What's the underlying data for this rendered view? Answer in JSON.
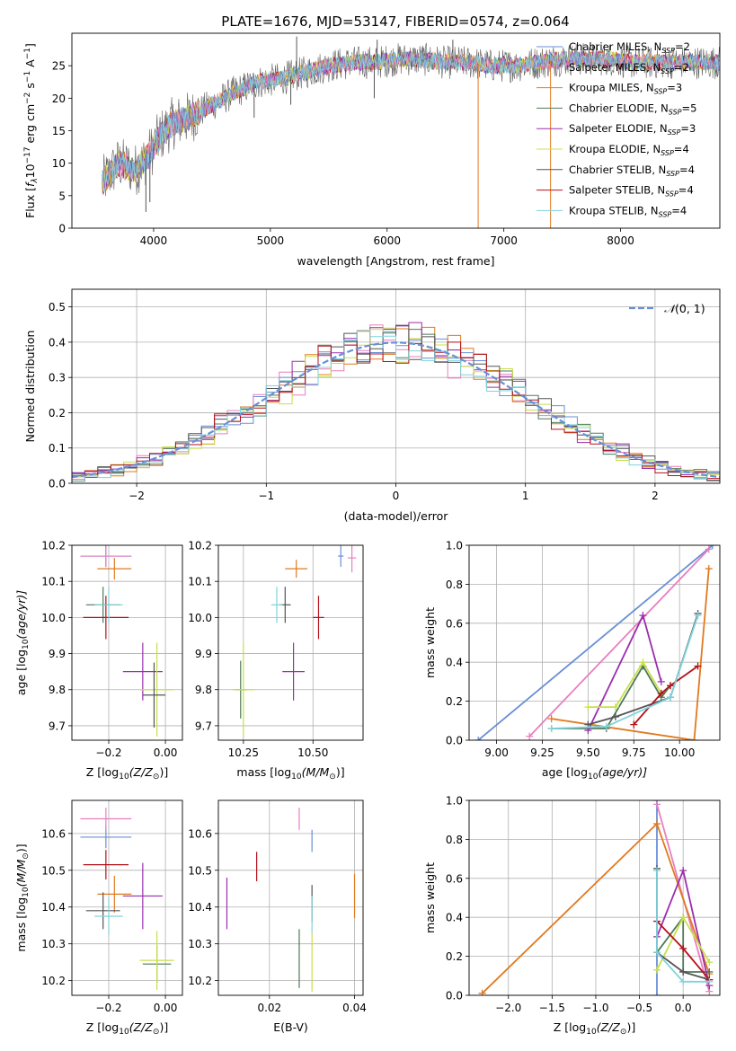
{
  "title": "PLATE=1676, MJD=53147, FIBERID=0574, z=0.064",
  "colors": {
    "Chabrier MILES": "#6a8fd6",
    "Salpeter MILES": "#e87fbf",
    "Kroupa MILES": "#e07a1f",
    "Chabrier ELODIE": "#4f7a5a",
    "Salpeter ELODIE": "#9a2fae",
    "Kroupa ELODIE": "#c8e04a",
    "Chabrier STELIB": "#555555",
    "Salpeter STELIB": "#b3121b",
    "Kroupa STELIB": "#7fd3dd"
  },
  "legend_models": [
    {
      "name": "Chabrier MILES",
      "n": "2"
    },
    {
      "name": "Salpeter MILES",
      "n": "2"
    },
    {
      "name": "Kroupa MILES",
      "n": "3"
    },
    {
      "name": "Chabrier ELODIE",
      "n": "5"
    },
    {
      "name": "Salpeter ELODIE",
      "n": "3"
    },
    {
      "name": "Kroupa ELODIE",
      "n": "4"
    },
    {
      "name": "Chabrier STELIB",
      "n": "4"
    },
    {
      "name": "Salpeter STELIB",
      "n": "4"
    },
    {
      "name": "Kroupa STELIB",
      "n": "4"
    }
  ],
  "chart_data": [
    {
      "type": "line",
      "id": "spectrum",
      "xlabel": "wavelength [Angstrom, rest frame]",
      "ylabel_parts": {
        "prefix": "Flux [",
        "f": "f",
        "lambda": "λ",
        "ten": "10",
        "exp": "−17",
        "units": " erg cm",
        "cm_exp": "−2",
        "s": " s",
        "s_exp": "−1",
        "A": " A",
        "A_exp": "−1",
        "close": "]"
      },
      "xlim": [
        3300,
        8850
      ],
      "ylim": [
        0,
        30
      ],
      "xticks": [
        4000,
        5000,
        6000,
        7000,
        8000
      ],
      "yticks": [
        0,
        5,
        10,
        15,
        20,
        25
      ],
      "legend_position": "right",
      "continuum": [
        [
          3560,
          7
        ],
        [
          3700,
          10
        ],
        [
          3850,
          9
        ],
        [
          3950,
          11
        ],
        [
          4050,
          14
        ],
        [
          4150,
          16
        ],
        [
          4300,
          17
        ],
        [
          4500,
          19
        ],
        [
          4700,
          21
        ],
        [
          4900,
          22.5
        ],
        [
          5100,
          23
        ],
        [
          5300,
          24
        ],
        [
          5500,
          25
        ],
        [
          5700,
          25.5
        ],
        [
          5900,
          25.5
        ],
        [
          6100,
          26
        ],
        [
          6300,
          26
        ],
        [
          6500,
          25.5
        ],
        [
          6700,
          25.5
        ],
        [
          6900,
          25
        ],
        [
          7100,
          25
        ],
        [
          7300,
          25.5
        ],
        [
          7500,
          26
        ],
        [
          7700,
          26
        ],
        [
          7900,
          26
        ],
        [
          8100,
          25.5
        ],
        [
          8300,
          25.5
        ],
        [
          8500,
          25.5
        ],
        [
          8800,
          25.5
        ]
      ],
      "features": [
        {
          "x": 3934,
          "y": 2.5
        },
        {
          "x": 3968,
          "y": 4
        },
        {
          "x": 4861,
          "y": 17
        },
        {
          "x": 5175,
          "y": 19
        },
        {
          "x": 5225,
          "y": 29.5
        },
        {
          "x": 5890,
          "y": 20
        },
        {
          "x": 5915,
          "y": 29
        },
        {
          "x": 6300,
          "y": 25.5
        },
        {
          "x": 6563,
          "y": 29
        },
        {
          "x": 6780,
          "y": 0
        },
        {
          "x": 7400,
          "y": 0
        }
      ]
    },
    {
      "type": "bar",
      "id": "residuals",
      "xlabel": "(data-model)/error",
      "ylabel": "Normed distribution",
      "xlim": [
        -2.5,
        2.5
      ],
      "ylim": [
        0,
        0.55
      ],
      "xticks": [
        -2,
        -1,
        0,
        1,
        2
      ],
      "xtick_labels": [
        "−2",
        "−1",
        "0",
        "1",
        "2"
      ],
      "yticks": [
        0,
        0.1,
        0.2,
        0.3,
        0.4,
        0.5
      ],
      "ytick_labels": [
        "0.0",
        "0.1",
        "0.2",
        "0.3",
        "0.4",
        "0.5"
      ],
      "bin_width": 0.1,
      "reference_curve": {
        "name_script": "𝒩",
        "name_rest": "(0, 1)",
        "mean": 0,
        "sigma": 1,
        "color": "#6a8fd6"
      },
      "legend_position": "top-right"
    },
    {
      "type": "scatter",
      "id": "age-vs-Z",
      "xlabel_parts": {
        "a": "Z [log",
        "sub": "10",
        "b": "(Z/Z",
        "sun": "⊙",
        "c": ")]"
      },
      "ylabel_parts": {
        "a": "age  [log",
        "sub": "10",
        "b": "(age/yr)]"
      },
      "xlim": [
        -0.33,
        0.06
      ],
      "ylim": [
        9.66,
        10.2
      ],
      "xticks": [
        -0.2,
        0.0
      ],
      "xtick_labels": [
        "−0.2",
        "0.00"
      ],
      "yticks": [
        9.7,
        9.8,
        9.9,
        10.0,
        10.1,
        10.2
      ],
      "ytick_labels": [
        "9.7",
        "9.8",
        "9.9",
        "10.0",
        "10.1",
        "10.2"
      ],
      "points": [
        {
          "m": "Chabrier MILES",
          "x": -0.21,
          "xerr": 0.09,
          "y": 10.17,
          "yerr": 0.03
        },
        {
          "m": "Salpeter MILES",
          "x": -0.21,
          "xerr": 0.09,
          "y": 10.17,
          "yerr": 0.03
        },
        {
          "m": "Kroupa MILES",
          "x": -0.18,
          "xerr": 0.06,
          "y": 10.135,
          "yerr": 0.03
        },
        {
          "m": "Chabrier ELODIE",
          "x": -0.22,
          "xerr": 0.06,
          "y": 10.035,
          "yerr": 0.05
        },
        {
          "m": "Salpeter ELODIE",
          "x": -0.08,
          "xerr": 0.07,
          "y": 9.85,
          "yerr": 0.08
        },
        {
          "m": "Kroupa ELODIE",
          "x": -0.03,
          "xerr": 0.06,
          "y": 9.8,
          "yerr": 0.13
        },
        {
          "m": "Chabrier STELIB",
          "x": -0.04,
          "xerr": 0.04,
          "y": 9.785,
          "yerr": 0.09
        },
        {
          "m": "Salpeter STELIB",
          "x": -0.21,
          "xerr": 0.08,
          "y": 10.0,
          "yerr": 0.06
        },
        {
          "m": "Kroupa STELIB",
          "x": -0.2,
          "xerr": 0.05,
          "y": 10.035,
          "yerr": 0.05
        }
      ]
    },
    {
      "type": "scatter",
      "id": "age-vs-mass",
      "xlabel_parts": {
        "a": "mass [log",
        "sub": "10",
        "b": "(M/M",
        "sun": "⊙",
        "c": ")]"
      },
      "xlim": [
        10.16,
        10.68
      ],
      "ylim": [
        9.66,
        10.2
      ],
      "xticks": [
        10.25,
        10.5
      ],
      "xtick_labels": [
        "10.25",
        "10.50"
      ],
      "yticks": [
        9.7,
        9.8,
        9.9,
        10.0,
        10.1,
        10.2
      ],
      "ytick_labels": [
        "9.7",
        "9.8",
        "9.9",
        "10.0",
        "10.1",
        "10.2"
      ],
      "points": [
        {
          "m": "Chabrier MILES",
          "x": 10.6,
          "xerr": 0.01,
          "y": 10.17,
          "yerr": 0.03
        },
        {
          "m": "Salpeter MILES",
          "x": 10.64,
          "xerr": 0.015,
          "y": 10.165,
          "yerr": 0.04
        },
        {
          "m": "Kroupa MILES",
          "x": 10.44,
          "xerr": 0.04,
          "y": 10.135,
          "yerr": 0.025
        },
        {
          "m": "Chabrier ELODIE",
          "x": 10.24,
          "xerr": 0.02,
          "y": 9.8,
          "yerr": 0.08
        },
        {
          "m": "Salpeter ELODIE",
          "x": 10.43,
          "xerr": 0.04,
          "y": 9.85,
          "yerr": 0.08
        },
        {
          "m": "Kroupa ELODIE",
          "x": 10.25,
          "xerr": 0.04,
          "y": 9.8,
          "yerr": 0.13
        },
        {
          "m": "Chabrier STELIB",
          "x": 10.4,
          "xerr": 0.02,
          "y": 10.035,
          "yerr": 0.05
        },
        {
          "m": "Salpeter STELIB",
          "x": 10.52,
          "xerr": 0.02,
          "y": 10.0,
          "yerr": 0.06
        },
        {
          "m": "Kroupa STELIB",
          "x": 10.37,
          "xerr": 0.02,
          "y": 10.035,
          "yerr": 0.05
        }
      ]
    },
    {
      "type": "line",
      "id": "mass-weight-vs-age",
      "xlabel_parts": {
        "a": "age  [log",
        "sub": "10",
        "b": "(age/yr)]"
      },
      "ylabel": "mass weight",
      "xlim": [
        8.85,
        10.22
      ],
      "ylim": [
        0,
        1
      ],
      "xticks": [
        9.0,
        9.25,
        9.5,
        9.75,
        10.0
      ],
      "xtick_labels": [
        "9.00",
        "9.25",
        "9.50",
        "9.75",
        "10.00"
      ],
      "yticks": [
        0,
        0.2,
        0.4,
        0.6,
        0.8,
        1.0
      ],
      "ytick_labels": [
        "0.0",
        "0.2",
        "0.4",
        "0.6",
        "0.8",
        "1.0"
      ],
      "series": [
        {
          "m": "Chabrier MILES",
          "x": [
            8.9,
            10.18
          ],
          "y": [
            0.0,
            1.0
          ]
        },
        {
          "m": "Salpeter MILES",
          "x": [
            9.18,
            10.16
          ],
          "y": [
            0.02,
            0.98
          ]
        },
        {
          "m": "Kroupa MILES",
          "x": [
            9.3,
            10.08,
            10.16
          ],
          "y": [
            0.11,
            0.0,
            0.88
          ]
        },
        {
          "m": "Chabrier ELODIE",
          "x": [
            9.3,
            9.6,
            9.8,
            9.9,
            9.95
          ],
          "y": [
            0.06,
            0.06,
            0.38,
            0.22,
            0.28
          ]
        },
        {
          "m": "Salpeter ELODIE",
          "x": [
            9.5,
            9.8,
            9.9
          ],
          "y": [
            0.05,
            0.64,
            0.3
          ]
        },
        {
          "m": "Kroupa ELODIE",
          "x": [
            9.5,
            9.65,
            9.8,
            9.9
          ],
          "y": [
            0.17,
            0.17,
            0.4,
            0.24
          ]
        },
        {
          "m": "Chabrier STELIB",
          "x": [
            9.5,
            9.65,
            9.95,
            10.1
          ],
          "y": [
            0.08,
            0.12,
            0.22,
            0.65
          ]
        },
        {
          "m": "Salpeter STELIB",
          "x": [
            9.75,
            9.9,
            9.95,
            10.1
          ],
          "y": [
            0.08,
            0.24,
            0.28,
            0.38
          ]
        },
        {
          "m": "Kroupa STELIB",
          "x": [
            9.3,
            9.6,
            9.95,
            10.1
          ],
          "y": [
            0.06,
            0.07,
            0.22,
            0.64
          ]
        }
      ]
    },
    {
      "type": "scatter",
      "id": "mass-vs-Z",
      "xlabel_parts": {
        "a": "Z [log",
        "sub": "10",
        "b": "(Z/Z",
        "sun": "⊙",
        "c": ")]"
      },
      "ylabel_parts": {
        "a": "mass [log",
        "sub": "10",
        "b": "(M/M",
        "sun": "⊙",
        "c": ")]"
      },
      "xlim": [
        -0.33,
        0.06
      ],
      "ylim": [
        10.16,
        10.69
      ],
      "xticks": [
        -0.2,
        0.0
      ],
      "xtick_labels": [
        "−0.2",
        "0.00"
      ],
      "yticks": [
        10.2,
        10.3,
        10.4,
        10.5,
        10.6
      ],
      "ytick_labels": [
        "10.2",
        "10.3",
        "10.4",
        "10.5",
        "10.6"
      ],
      "points": [
        {
          "m": "Chabrier MILES",
          "x": -0.21,
          "xerr": 0.09,
          "y": 10.59,
          "yerr": 0.03
        },
        {
          "m": "Salpeter MILES",
          "x": -0.21,
          "xerr": 0.09,
          "y": 10.64,
          "yerr": 0.03
        },
        {
          "m": "Kroupa MILES",
          "x": -0.18,
          "xerr": 0.06,
          "y": 10.435,
          "yerr": 0.05
        },
        {
          "m": "Chabrier ELODIE",
          "x": -0.03,
          "xerr": 0.05,
          "y": 10.245,
          "yerr": 0.05
        },
        {
          "m": "Salpeter ELODIE",
          "x": -0.08,
          "xerr": 0.07,
          "y": 10.43,
          "yerr": 0.09
        },
        {
          "m": "Kroupa ELODIE",
          "x": -0.03,
          "xerr": 0.06,
          "y": 10.255,
          "yerr": 0.08
        },
        {
          "m": "Chabrier STELIB",
          "x": -0.22,
          "xerr": 0.06,
          "y": 10.39,
          "yerr": 0.05
        },
        {
          "m": "Salpeter STELIB",
          "x": -0.21,
          "xerr": 0.08,
          "y": 10.515,
          "yerr": 0.04
        },
        {
          "m": "Kroupa STELIB",
          "x": -0.2,
          "xerr": 0.05,
          "y": 10.375,
          "yerr": 0.05
        }
      ]
    },
    {
      "type": "scatter",
      "id": "mass-vs-EBV",
      "xlabel": "E(B-V)",
      "xlim": [
        0.008,
        0.042
      ],
      "ylim": [
        10.16,
        10.69
      ],
      "xticks": [
        0.02,
        0.04
      ],
      "xtick_labels": [
        "0.02",
        "0.04"
      ],
      "yticks": [
        10.2,
        10.3,
        10.4,
        10.5,
        10.6
      ],
      "ytick_labels": [
        "10.2",
        "10.3",
        "10.4",
        "10.5",
        "10.6"
      ],
      "points": [
        {
          "m": "Chabrier MILES",
          "x": 0.03,
          "xerr": 0,
          "y": 10.58,
          "yerr": 0.03
        },
        {
          "m": "Salpeter MILES",
          "x": 0.027,
          "xerr": 0,
          "y": 10.64,
          "yerr": 0.03
        },
        {
          "m": "Kroupa MILES",
          "x": 0.04,
          "xerr": 0,
          "y": 10.43,
          "yerr": 0.06
        },
        {
          "m": "Chabrier ELODIE",
          "x": 0.027,
          "xerr": 0,
          "y": 10.26,
          "yerr": 0.08
        },
        {
          "m": "Salpeter ELODIE",
          "x": 0.01,
          "xerr": 0,
          "y": 10.41,
          "yerr": 0.07
        },
        {
          "m": "Kroupa ELODIE",
          "x": 0.03,
          "xerr": 0,
          "y": 10.25,
          "yerr": 0.08
        },
        {
          "m": "Chabrier STELIB",
          "x": 0.03,
          "xerr": 0,
          "y": 10.41,
          "yerr": 0.05
        },
        {
          "m": "Salpeter STELIB",
          "x": 0.017,
          "xerr": 0,
          "y": 10.51,
          "yerr": 0.04
        },
        {
          "m": "Kroupa STELIB",
          "x": 0.03,
          "xerr": 0,
          "y": 10.38,
          "yerr": 0.05
        }
      ]
    },
    {
      "type": "line",
      "id": "mass-weight-vs-Z",
      "xlabel_parts": {
        "a": "Z [log",
        "sub": "10",
        "b": "(Z/Z",
        "sun": "⊙",
        "c": ")]"
      },
      "ylabel": "mass weight",
      "xlim": [
        -2.45,
        0.42
      ],
      "ylim": [
        0,
        1
      ],
      "xticks": [
        -2.0,
        -1.5,
        -1.0,
        -0.5,
        0.0
      ],
      "xtick_labels": [
        "−2.0",
        "−1.5",
        "−1.0",
        "−0.5",
        "0.0"
      ],
      "yticks": [
        0,
        0.2,
        0.4,
        0.6,
        0.8,
        1.0
      ],
      "ytick_labels": [
        "0.0",
        "0.2",
        "0.4",
        "0.6",
        "0.8",
        "1.0"
      ],
      "series": [
        {
          "m": "Chabrier MILES",
          "x": [
            -0.3,
            -0.3
          ],
          "y": [
            0.0,
            1.0
          ]
        },
        {
          "m": "Salpeter MILES",
          "x": [
            -0.3,
            0.3
          ],
          "y": [
            0.98,
            0.02
          ]
        },
        {
          "m": "Kroupa MILES",
          "x": [
            -2.3,
            -0.3,
            0.3
          ],
          "y": [
            0.01,
            0.88,
            0.11
          ]
        },
        {
          "m": "Chabrier ELODIE",
          "x": [
            -0.3,
            0.0,
            0.0,
            0.3
          ],
          "y": [
            0.22,
            0.4,
            0.12,
            0.12
          ]
        },
        {
          "m": "Salpeter ELODIE",
          "x": [
            -0.3,
            0.0,
            0.3
          ],
          "y": [
            0.3,
            0.64,
            0.05
          ]
        },
        {
          "m": "Kroupa ELODIE",
          "x": [
            -0.3,
            0.0,
            0.3
          ],
          "y": [
            0.13,
            0.4,
            0.17
          ]
        },
        {
          "m": "Chabrier STELIB",
          "x": [
            -0.3,
            -0.3,
            0.0,
            0.3
          ],
          "y": [
            0.65,
            0.22,
            0.12,
            0.08
          ]
        },
        {
          "m": "Salpeter STELIB",
          "x": [
            -0.3,
            0.0,
            0.3
          ],
          "y": [
            0.38,
            0.24,
            0.08
          ]
        },
        {
          "m": "Kroupa STELIB",
          "x": [
            -0.3,
            -0.3,
            0.0,
            0.3
          ],
          "y": [
            0.64,
            0.22,
            0.07,
            0.07
          ]
        }
      ]
    }
  ]
}
